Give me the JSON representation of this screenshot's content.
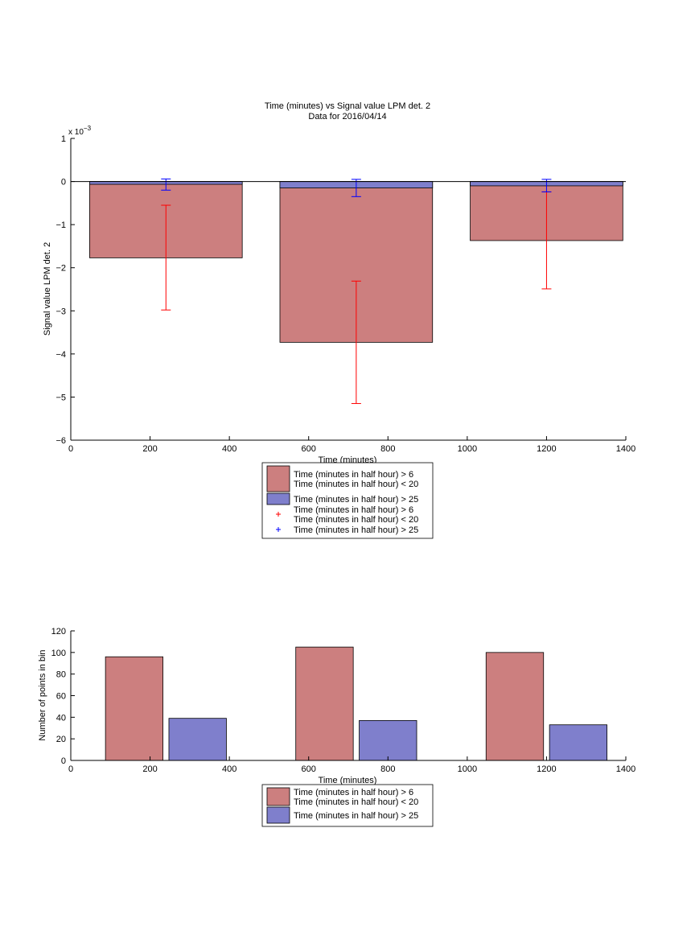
{
  "chart_data": [
    {
      "type": "bar",
      "title": "Time (minutes) vs Signal value LPM det. 2",
      "subtitle": "Data for 2016/04/14",
      "xlabel": "Time (minutes)",
      "ylabel": "Signal value LPM det. 2",
      "y_exponent_label": "x 10",
      "y_exponent_power": "−3",
      "xlim": [
        0,
        1400
      ],
      "ylim": [
        -6,
        1
      ],
      "xticks": [
        0,
        200,
        400,
        600,
        800,
        1000,
        1200,
        1400
      ],
      "yticks": [
        -6,
        -5,
        -4,
        -3,
        -2,
        -1,
        0,
        1
      ],
      "ytick_labels": [
        "−6",
        "−5",
        "−4",
        "−3",
        "−2",
        "−1",
        "0",
        "1"
      ],
      "grid": false,
      "legend_position": "below",
      "bar_width": 385,
      "series": [
        {
          "name": "Time (minutes in half hour) > 6",
          "name_line2": "Time (minutes in half hour) < 20",
          "color": "#cc7f7f",
          "x": [
            240,
            720,
            1200
          ],
          "values": [
            -1.77,
            -3.73,
            -1.37
          ],
          "err_lower": [
            -2.98,
            -5.15,
            -2.49
          ],
          "err_upper": [
            -0.55,
            -2.31,
            -0.24
          ],
          "err_color": "#ff0000"
        },
        {
          "name": "Time (minutes in half hour) > 25",
          "color": "#7f7fcc",
          "x": [
            240,
            720,
            1200
          ],
          "values": [
            -0.065,
            -0.15,
            -0.1
          ],
          "err_lower": [
            -0.2,
            -0.35,
            -0.24
          ],
          "err_upper": [
            0.06,
            0.05,
            0.05
          ],
          "err_color": "#0000ff"
        }
      ],
      "legend": [
        {
          "kind": "patch",
          "color": "#cc7f7f",
          "line1": "Time (minutes in half hour) > 6",
          "line2": "Time (minutes in half hour) < 20"
        },
        {
          "kind": "patch",
          "color": "#7f7fcc",
          "line1": "Time (minutes in half hour) > 25"
        },
        {
          "kind": "marker",
          "color": "#ff0000",
          "line1": "Time (minutes in half hour) > 6",
          "line2": "Time (minutes in half hour) < 20"
        },
        {
          "kind": "marker",
          "color": "#0000ff",
          "line1": "Time (minutes in half hour) > 25"
        }
      ]
    },
    {
      "type": "bar",
      "xlabel": "Time (minutes)",
      "ylabel": "Number of points in bin",
      "xlim": [
        0,
        1400
      ],
      "ylim": [
        0,
        120
      ],
      "xticks": [
        0,
        200,
        400,
        600,
        800,
        1000,
        1200,
        1400
      ],
      "yticks": [
        0,
        20,
        40,
        60,
        80,
        100,
        120
      ],
      "grid": false,
      "legend_position": "below",
      "bar_width": 145,
      "series": [
        {
          "name": "Time (minutes in half hour) > 6",
          "name_line2": "Time (minutes in half hour) < 20",
          "color": "#cc7f7f",
          "x": [
            160,
            640,
            1120
          ],
          "values": [
            96,
            105,
            100
          ]
        },
        {
          "name": "Time (minutes in half hour) > 25",
          "color": "#7f7fcc",
          "x": [
            320,
            800,
            1280
          ],
          "values": [
            39,
            37,
            33
          ]
        }
      ],
      "legend": [
        {
          "kind": "patch",
          "color": "#cc7f7f",
          "line1": "Time (minutes in half hour) > 6",
          "line2": "Time (minutes in half hour) < 20"
        },
        {
          "kind": "patch",
          "color": "#7f7fcc",
          "line1": "Time (minutes in half hour) > 25"
        }
      ]
    }
  ]
}
